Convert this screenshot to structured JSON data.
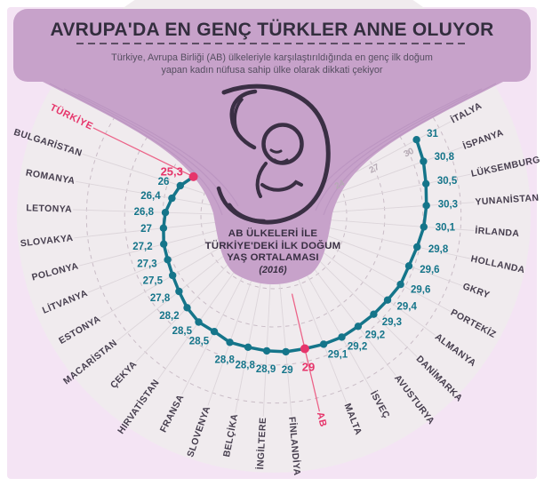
{
  "title": "AVRUPA'DA EN GENÇ TÜRKLER ANNE OLUYOR",
  "subtitle": {
    "line1": "Türkiye, Avrupa Birliği (AB) ülkeleriyle karşılaştırıldığında en genç ilk doğum",
    "line2": "yapan kadın nüfusa sahip ülke olarak dikkati çekiyor"
  },
  "center_label": {
    "line1": "AB ÜLKELERİ İLE",
    "line2": "TÜRKİYE'DEKİ İLK DOĞUM",
    "line3": "YAŞ ORTALAMASI",
    "year": "(2016)"
  },
  "colors": {
    "background": "#f4e4f4",
    "fan": "#f0ebee",
    "purple": "#c7a2ca",
    "teal": "#15758a",
    "pink": "#e6356b",
    "pink_line": "#ec6388",
    "country_label": "#463e4e",
    "tick": "#b5aab4"
  },
  "chart_data": {
    "type": "line",
    "subtype": "radial-fan dot-line chart",
    "title": "AB ülkeleri ile Türkiye'deki ilk doğum yaş ortalaması (2016)",
    "unit": "yaş",
    "axis_ticks": [
      24,
      27,
      30
    ],
    "grid_arcs": [
      24,
      27,
      30,
      33
    ],
    "axis_range": [
      21,
      33
    ],
    "legend_position": "none",
    "grid": true,
    "series": [
      {
        "name": "TÜRKİYE",
        "value": 25.3,
        "display": "25,3",
        "highlight": true
      },
      {
        "name": "BULGARİSTAN",
        "value": 26,
        "display": "26",
        "highlight": false
      },
      {
        "name": "ROMANYA",
        "value": 26.4,
        "display": "26,4",
        "highlight": false
      },
      {
        "name": "LETONYA",
        "value": 26.8,
        "display": "26,8",
        "highlight": false
      },
      {
        "name": "SLOVAKYA",
        "value": 27,
        "display": "27",
        "highlight": false
      },
      {
        "name": "POLONYA",
        "value": 27.2,
        "display": "27,2",
        "highlight": false
      },
      {
        "name": "LİTVANYA",
        "value": 27.3,
        "display": "27,3",
        "highlight": false
      },
      {
        "name": "ESTONYA",
        "value": 27.5,
        "display": "27,5",
        "highlight": false
      },
      {
        "name": "MACARİSTAN",
        "value": 27.8,
        "display": "27,8",
        "highlight": false
      },
      {
        "name": "ÇEKYA",
        "value": 28.2,
        "display": "28,2",
        "highlight": false
      },
      {
        "name": "HIRVATİSTAN",
        "value": 28.5,
        "display": "28,5",
        "highlight": false
      },
      {
        "name": "FRANSA",
        "value": 28.5,
        "display": "28,5",
        "highlight": false
      },
      {
        "name": "SLOVENYA",
        "value": 28.8,
        "display": "28,8",
        "highlight": false
      },
      {
        "name": "BELÇİKA",
        "value": 28.8,
        "display": "28,8",
        "highlight": false
      },
      {
        "name": "İNGİLTERE",
        "value": 28.9,
        "display": "28,9",
        "highlight": false
      },
      {
        "name": "FİNLANDİYA",
        "value": 29,
        "display": "29",
        "highlight": false
      },
      {
        "name": "AB",
        "value": 29,
        "display": "29",
        "highlight": true
      },
      {
        "name": "MALTA",
        "value": 29.1,
        "display": "29,1",
        "highlight": false
      },
      {
        "name": "İSVEÇ",
        "value": 29.2,
        "display": "29,2",
        "highlight": false
      },
      {
        "name": "AVUSTURYA",
        "value": 29.2,
        "display": "29,2",
        "highlight": false
      },
      {
        "name": "DANİMARKA",
        "value": 29.3,
        "display": "29,3",
        "highlight": false
      },
      {
        "name": "ALMANYA",
        "value": 29.4,
        "display": "29,4",
        "highlight": false
      },
      {
        "name": "PORTEKİZ",
        "value": 29.6,
        "display": "29,6",
        "highlight": false
      },
      {
        "name": "GKRY",
        "value": 29.6,
        "display": "29,6",
        "highlight": false
      },
      {
        "name": "HOLLANDA",
        "value": 29.8,
        "display": "29,8",
        "highlight": false
      },
      {
        "name": "İRLANDA",
        "value": 30.1,
        "display": "30,1",
        "highlight": false
      },
      {
        "name": "YUNANİSTAN",
        "value": 30.3,
        "display": "30,3",
        "highlight": false
      },
      {
        "name": "LÜKSEMBURG",
        "value": 30.5,
        "display": "30,5",
        "highlight": false
      },
      {
        "name": "İSPANYA",
        "value": 30.8,
        "display": "30,8",
        "highlight": false
      },
      {
        "name": "İTALYA",
        "value": 31,
        "display": "31",
        "highlight": false
      }
    ]
  }
}
